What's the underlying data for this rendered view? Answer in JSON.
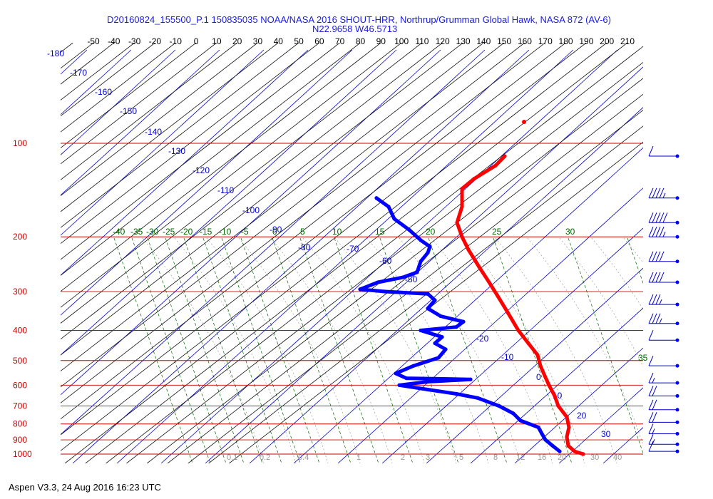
{
  "title": {
    "line1": "D20160824_155500_P.1 150835035 NOAA/NASA 2016 SHOUT-HRR, Northrup/Grumman Global Hawk, NASA 872 (AV-6)",
    "line2": "N22.9658 W46.5713"
  },
  "footer": "Aspen V3.3, 24 Aug 2016  16:23 UTC",
  "colors": {
    "temperature": "#ff0000",
    "dewpoint": "#0000ff",
    "isobar": "#cc0000",
    "isotherm": "#000000",
    "dry_adiabat": "#0000cc",
    "mixing_ratio": "#006600",
    "moist_adiabat": "#999999",
    "labels": "#0000cc"
  },
  "chart_data": {
    "type": "skew-t log-p sounding",
    "pressure_levels": [
      "100",
      "200",
      "300",
      "400",
      "500",
      "600",
      "700",
      "800",
      "900",
      "1000"
    ],
    "temperature_ticks": [
      "-50",
      "-40",
      "-30",
      "-20",
      "-10",
      "0",
      "10",
      "20",
      "30",
      "40",
      "50",
      "60",
      "70",
      "80",
      "90",
      "100",
      "110",
      "120",
      "130",
      "140",
      "150",
      "160",
      "170",
      "180",
      "190",
      "200",
      "210"
    ],
    "dry_adiabat_labels": [
      "-180",
      "-170",
      "-160",
      "-150",
      "-140",
      "-130",
      "-120",
      "-110",
      "-100",
      "-90",
      "-80",
      "-70",
      "-60",
      "-50",
      "-20",
      "-10",
      "0",
      "10",
      "20",
      "30"
    ],
    "mixing_ratio_labels": [
      "-40",
      "-35",
      "-30",
      "-25",
      "-20",
      "-15",
      "-10",
      "-5",
      "0",
      "5",
      "10",
      "15",
      "20",
      "25",
      "30",
      "35"
    ],
    "moist_adiabat_labels": [
      "0.1",
      "0.2",
      "0.4",
      "1",
      "2",
      "3",
      "5",
      "8",
      "12",
      "16",
      "20",
      "30",
      "40"
    ],
    "series": [
      {
        "name": "",
        "role": "temperature",
        "color": "#ff0000",
        "points": [
          {
            "p": 110,
            "x": 708
          },
          {
            "p": 118,
            "x": 695
          },
          {
            "p": 130,
            "x": 665
          },
          {
            "p": 140,
            "x": 648
          },
          {
            "p": 160,
            "x": 648
          },
          {
            "p": 180,
            "x": 641
          },
          {
            "p": 200,
            "x": 648
          },
          {
            "p": 220,
            "x": 657
          },
          {
            "p": 250,
            "x": 672
          },
          {
            "p": 280,
            "x": 686
          },
          {
            "p": 310,
            "x": 698
          },
          {
            "p": 350,
            "x": 712
          },
          {
            "p": 400,
            "x": 727
          },
          {
            "p": 440,
            "x": 741
          },
          {
            "p": 480,
            "x": 754
          },
          {
            "p": 520,
            "x": 758
          },
          {
            "p": 560,
            "x": 764
          },
          {
            "p": 600,
            "x": 770
          },
          {
            "p": 650,
            "x": 778
          },
          {
            "p": 700,
            "x": 783
          },
          {
            "p": 760,
            "x": 795
          },
          {
            "p": 820,
            "x": 798
          },
          {
            "p": 880,
            "x": 795
          },
          {
            "p": 940,
            "x": 797
          },
          {
            "p": 980,
            "x": 806
          },
          {
            "p": 1000,
            "x": 818
          }
        ]
      },
      {
        "name": "",
        "role": "dewpoint",
        "color": "#0000ff",
        "points": [
          {
            "p": 150,
            "x": 528
          },
          {
            "p": 160,
            "x": 545
          },
          {
            "p": 175,
            "x": 553
          },
          {
            "p": 190,
            "x": 574
          },
          {
            "p": 205,
            "x": 590
          },
          {
            "p": 215,
            "x": 603
          },
          {
            "p": 225,
            "x": 600
          },
          {
            "p": 240,
            "x": 590
          },
          {
            "p": 260,
            "x": 585
          },
          {
            "p": 270,
            "x": 565
          },
          {
            "p": 280,
            "x": 530
          },
          {
            "p": 295,
            "x": 505
          },
          {
            "p": 300,
            "x": 540
          },
          {
            "p": 305,
            "x": 600
          },
          {
            "p": 320,
            "x": 610
          },
          {
            "p": 340,
            "x": 600
          },
          {
            "p": 360,
            "x": 618
          },
          {
            "p": 375,
            "x": 650
          },
          {
            "p": 390,
            "x": 640
          },
          {
            "p": 400,
            "x": 590
          },
          {
            "p": 420,
            "x": 620
          },
          {
            "p": 440,
            "x": 610
          },
          {
            "p": 460,
            "x": 625
          },
          {
            "p": 490,
            "x": 615
          },
          {
            "p": 520,
            "x": 580
          },
          {
            "p": 550,
            "x": 555
          },
          {
            "p": 570,
            "x": 570
          },
          {
            "p": 575,
            "x": 660
          },
          {
            "p": 585,
            "x": 600
          },
          {
            "p": 600,
            "x": 560
          },
          {
            "p": 620,
            "x": 600
          },
          {
            "p": 640,
            "x": 640
          },
          {
            "p": 660,
            "x": 670
          },
          {
            "p": 700,
            "x": 700
          },
          {
            "p": 740,
            "x": 720
          },
          {
            "p": 780,
            "x": 730
          },
          {
            "p": 820,
            "x": 755
          },
          {
            "p": 860,
            "x": 760
          },
          {
            "p": 900,
            "x": 765
          },
          {
            "p": 940,
            "x": 775
          },
          {
            "p": 980,
            "x": 785
          }
        ]
      }
    ],
    "wind_barbs": [
      {
        "p": 110,
        "speed_kt": 10
      },
      {
        "p": 150,
        "speed_kt": 45
      },
      {
        "p": 180,
        "speed_kt": 50
      },
      {
        "p": 200,
        "speed_kt": 45
      },
      {
        "p": 240,
        "speed_kt": 40
      },
      {
        "p": 280,
        "speed_kt": 40
      },
      {
        "p": 330,
        "speed_kt": 35
      },
      {
        "p": 380,
        "speed_kt": 35
      },
      {
        "p": 430,
        "speed_kt": 10
      },
      {
        "p": 520,
        "speed_kt": 10
      },
      {
        "p": 590,
        "speed_kt": 15
      },
      {
        "p": 650,
        "speed_kt": 20
      },
      {
        "p": 720,
        "speed_kt": 20
      },
      {
        "p": 790,
        "speed_kt": 20
      },
      {
        "p": 860,
        "speed_kt": 15
      },
      {
        "p": 930,
        "speed_kt": 15
      },
      {
        "p": 980,
        "speed_kt": 10
      }
    ]
  }
}
